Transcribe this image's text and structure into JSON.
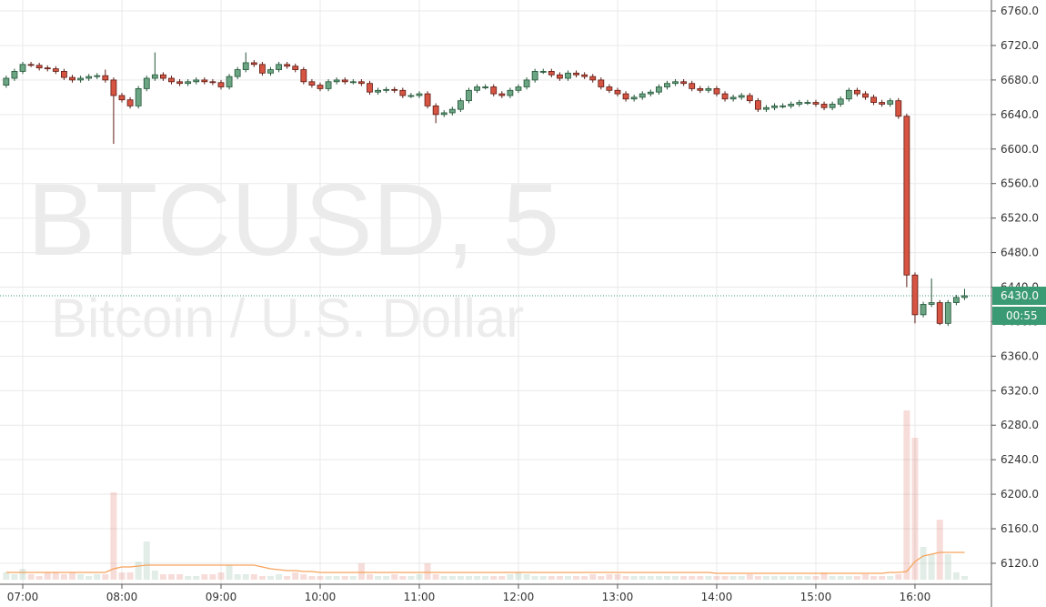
{
  "chart_data": {
    "type": "candlestick",
    "watermark": "BTCUSD, 5",
    "watermark_subtitle": "Bitcoin / U.S. Dollar",
    "x": [
      "06:50",
      "06:55",
      "07:00",
      "07:05",
      "07:10",
      "07:15",
      "07:20",
      "07:25",
      "07:30",
      "07:35",
      "07:40",
      "07:45",
      "07:50",
      "07:55",
      "08:00",
      "08:05",
      "08:10",
      "08:15",
      "08:20",
      "08:25",
      "08:30",
      "08:35",
      "08:40",
      "08:45",
      "08:50",
      "08:55",
      "09:00",
      "09:05",
      "09:10",
      "09:15",
      "09:20",
      "09:25",
      "09:30",
      "09:35",
      "09:40",
      "09:45",
      "09:50",
      "09:55",
      "10:00",
      "10:05",
      "10:10",
      "10:15",
      "10:20",
      "10:25",
      "10:30",
      "10:35",
      "10:40",
      "10:45",
      "10:50",
      "10:55",
      "11:00",
      "11:05",
      "11:10",
      "11:15",
      "11:20",
      "11:25",
      "11:30",
      "11:35",
      "11:40",
      "11:45",
      "11:50",
      "11:55",
      "12:00",
      "12:05",
      "12:10",
      "12:15",
      "12:20",
      "12:25",
      "12:30",
      "12:35",
      "12:40",
      "12:45",
      "12:50",
      "12:55",
      "13:00",
      "13:05",
      "13:10",
      "13:15",
      "13:20",
      "13:25",
      "13:30",
      "13:35",
      "13:40",
      "13:45",
      "13:50",
      "13:55",
      "14:00",
      "14:05",
      "14:10",
      "14:15",
      "14:20",
      "14:25",
      "14:30",
      "14:35",
      "14:40",
      "14:45",
      "14:50",
      "14:55",
      "15:00",
      "15:05",
      "15:10",
      "15:15",
      "15:20",
      "15:25",
      "15:30",
      "15:35",
      "15:40",
      "15:45",
      "15:50",
      "15:55",
      "16:00",
      "16:05",
      "16:10",
      "16:15",
      "16:20",
      "16:25",
      "16:30"
    ],
    "open": [
      6674,
      6682,
      6690,
      6698,
      6697,
      6694,
      6693,
      6690,
      6683,
      6680,
      6682,
      6684,
      6685,
      6680,
      6662,
      6657,
      6650,
      6670,
      6682,
      6686,
      6682,
      6678,
      6676,
      6678,
      6680,
      6678,
      6677,
      6672,
      6684,
      6692,
      6700,
      6698,
      6688,
      6692,
      6698,
      6696,
      6692,
      6678,
      6674,
      6670,
      6678,
      6680,
      6678,
      6678,
      6676,
      6666,
      6668,
      6669,
      6668,
      6662,
      6662,
      6664,
      6650,
      6640,
      6642,
      6646,
      6656,
      6668,
      6672,
      6672,
      6664,
      6662,
      6668,
      6672,
      6680,
      6690,
      6690,
      6686,
      6682,
      6688,
      6686,
      6684,
      6680,
      6672,
      6668,
      6664,
      6658,
      6660,
      6664,
      6666,
      6672,
      6676,
      6678,
      6676,
      6670,
      6668,
      6670,
      6664,
      6658,
      6660,
      6662,
      6656,
      6646,
      6648,
      6650,
      6650,
      6652,
      6654,
      6654,
      6652,
      6648,
      6652,
      6658,
      6668,
      6664,
      6660,
      6654,
      6652,
      6656,
      6638,
      6454,
      6408,
      6420,
      6422,
      6398,
      6422,
      6428
    ],
    "high": [
      6685,
      6693,
      6701,
      6701,
      6700,
      6697,
      6696,
      6693,
      6686,
      6685,
      6687,
      6688,
      6692,
      6683,
      6665,
      6660,
      6673,
      6685,
      6712,
      6689,
      6685,
      6681,
      6681,
      6683,
      6683,
      6681,
      6680,
      6687,
      6695,
      6712,
      6703,
      6701,
      6695,
      6701,
      6701,
      6699,
      6695,
      6681,
      6677,
      6681,
      6683,
      6683,
      6681,
      6681,
      6679,
      6671,
      6672,
      6672,
      6671,
      6665,
      6667,
      6667,
      6653,
      6645,
      6649,
      6659,
      6671,
      6675,
      6675,
      6675,
      6667,
      6671,
      6675,
      6683,
      6693,
      6693,
      6693,
      6689,
      6691,
      6691,
      6689,
      6687,
      6683,
      6675,
      6671,
      6667,
      6663,
      6667,
      6669,
      6675,
      6679,
      6681,
      6681,
      6679,
      6673,
      6673,
      6673,
      6667,
      6663,
      6665,
      6665,
      6659,
      6651,
      6653,
      6653,
      6655,
      6657,
      6657,
      6657,
      6655,
      6655,
      6661,
      6671,
      6671,
      6667,
      6663,
      6657,
      6659,
      6659,
      6641,
      6457,
      6423,
      6450,
      6425,
      6425,
      6431,
      6438
    ],
    "low": [
      6671,
      6679,
      6687,
      6695,
      6691,
      6690,
      6687,
      6680,
      6677,
      6677,
      6679,
      6681,
      6677,
      6606,
      6654,
      6647,
      6647,
      6667,
      6679,
      6679,
      6675,
      6673,
      6673,
      6675,
      6675,
      6674,
      6669,
      6669,
      6681,
      6689,
      6695,
      6685,
      6685,
      6689,
      6693,
      6689,
      6675,
      6671,
      6667,
      6667,
      6675,
      6675,
      6675,
      6673,
      6663,
      6663,
      6665,
      6665,
      6659,
      6659,
      6659,
      6647,
      6630,
      6637,
      6639,
      6643,
      6653,
      6665,
      6669,
      6661,
      6659,
      6659,
      6665,
      6669,
      6677,
      6687,
      6683,
      6679,
      6679,
      6683,
      6681,
      6677,
      6669,
      6665,
      6661,
      6655,
      6655,
      6657,
      6661,
      6663,
      6669,
      6673,
      6673,
      6667,
      6665,
      6665,
      6661,
      6655,
      6655,
      6657,
      6653,
      6643,
      6643,
      6645,
      6647,
      6647,
      6649,
      6651,
      6649,
      6645,
      6645,
      6649,
      6655,
      6661,
      6657,
      6651,
      6649,
      6649,
      6635,
      6440,
      6398,
      6405,
      6417,
      6396,
      6395,
      6419,
      6425
    ],
    "close": [
      6682,
      6690,
      6698,
      6697,
      6694,
      6693,
      6690,
      6683,
      6680,
      6682,
      6684,
      6685,
      6680,
      6662,
      6657,
      6650,
      6670,
      6682,
      6686,
      6682,
      6678,
      6676,
      6678,
      6680,
      6678,
      6677,
      6672,
      6684,
      6692,
      6700,
      6698,
      6688,
      6692,
      6698,
      6696,
      6692,
      6678,
      6674,
      6670,
      6678,
      6680,
      6678,
      6678,
      6676,
      6666,
      6668,
      6669,
      6668,
      6662,
      6662,
      6664,
      6650,
      6640,
      6642,
      6646,
      6656,
      6668,
      6672,
      6672,
      6664,
      6662,
      6668,
      6672,
      6680,
      6690,
      6690,
      6686,
      6682,
      6688,
      6686,
      6684,
      6680,
      6672,
      6668,
      6664,
      6658,
      6660,
      6664,
      6666,
      6672,
      6676,
      6678,
      6676,
      6670,
      6668,
      6670,
      6664,
      6658,
      6660,
      6662,
      6656,
      6646,
      6648,
      6650,
      6650,
      6652,
      6654,
      6654,
      6652,
      6648,
      6652,
      6658,
      6668,
      6664,
      6660,
      6654,
      6652,
      6656,
      6638,
      6454,
      6408,
      6420,
      6422,
      6398,
      6422,
      6428,
      6430
    ],
    "volume": [
      4,
      3,
      6,
      3,
      2,
      4,
      4,
      3,
      4,
      3,
      2,
      3,
      3,
      48,
      4,
      4,
      10,
      21,
      5,
      3,
      3,
      3,
      2,
      2,
      3,
      3,
      4,
      8,
      3,
      3,
      3,
      2,
      2,
      3,
      2,
      4,
      3,
      2,
      2,
      2,
      2,
      2,
      2,
      9,
      3,
      2,
      2,
      3,
      2,
      2,
      3,
      9,
      3,
      2,
      2,
      2,
      2,
      2,
      2,
      2,
      2,
      3,
      4,
      3,
      2,
      2,
      2,
      2,
      2,
      2,
      2,
      3,
      2,
      3,
      3,
      2,
      2,
      2,
      2,
      2,
      2,
      2,
      2,
      2,
      2,
      2,
      2,
      2,
      2,
      2,
      3,
      2,
      2,
      2,
      2,
      2,
      2,
      2,
      2,
      4,
      2,
      2,
      2,
      2,
      3,
      2,
      2,
      2,
      3,
      93,
      78,
      18,
      14,
      33,
      14,
      4,
      2
    ],
    "volume_ma": [
      4,
      4,
      4,
      4,
      4,
      4,
      4,
      4,
      4,
      4,
      4,
      4,
      4,
      6,
      7,
      7,
      7.5,
      8,
      8,
      8,
      8,
      8,
      8,
      8,
      8,
      8,
      8,
      8,
      8,
      8,
      8,
      7,
      6,
      5.5,
      5,
      5,
      4.5,
      4.5,
      4,
      4,
      4,
      4,
      4,
      4,
      4,
      4,
      4,
      4,
      4,
      4,
      4,
      4,
      4,
      4,
      4,
      4,
      4,
      4,
      4,
      4,
      4,
      4,
      4,
      4,
      4,
      4,
      4,
      4,
      4,
      4,
      4,
      4,
      4,
      4,
      4,
      4,
      4,
      4,
      4,
      4,
      4,
      4,
      4,
      4,
      4,
      4,
      3.5,
      3.5,
      3.5,
      3.5,
      3.5,
      3.5,
      3.5,
      3.5,
      3.5,
      3.5,
      3.5,
      3.5,
      3.5,
      3.5,
      3.5,
      3.5,
      3.5,
      3.5,
      3.5,
      3.5,
      3.5,
      4,
      4,
      4.5,
      10,
      13,
      14,
      15,
      15,
      15,
      15
    ],
    "volume_lim": [
      0,
      100
    ],
    "up_color": "#6ba583",
    "down_color": "#d75442",
    "ylim": [
      6095.7,
      6772.7
    ],
    "yticks": [
      {
        "value": 6120,
        "label": "6120.0"
      },
      {
        "value": 6160,
        "label": "6160.0"
      },
      {
        "value": 6200,
        "label": "6200.0"
      },
      {
        "value": 6240,
        "label": "6240.0"
      },
      {
        "value": 6280,
        "label": "6280.0"
      },
      {
        "value": 6320,
        "label": "6320.0"
      },
      {
        "value": 6360,
        "label": "6360.0"
      },
      {
        "value": 6400,
        "label": "6400.0"
      },
      {
        "value": 6440,
        "label": "6440.0"
      },
      {
        "value": 6480,
        "label": "6480.0"
      },
      {
        "value": 6520,
        "label": "6520.0"
      },
      {
        "value": 6560,
        "label": "6560.0"
      },
      {
        "value": 6600,
        "label": "6600.0"
      },
      {
        "value": 6640,
        "label": "6640.0"
      },
      {
        "value": 6680,
        "label": "6680.0"
      },
      {
        "value": 6720,
        "label": "6720.0"
      },
      {
        "value": 6760,
        "label": "6760.0"
      }
    ],
    "xticks": [
      "07:00",
      "08:00",
      "09:00",
      "10:00",
      "11:00",
      "12:00",
      "13:00",
      "14:00",
      "15:00",
      "16:00"
    ],
    "last_price": {
      "value": 6430,
      "label": "6430.0"
    },
    "countdown": "00:55",
    "grid": true
  }
}
